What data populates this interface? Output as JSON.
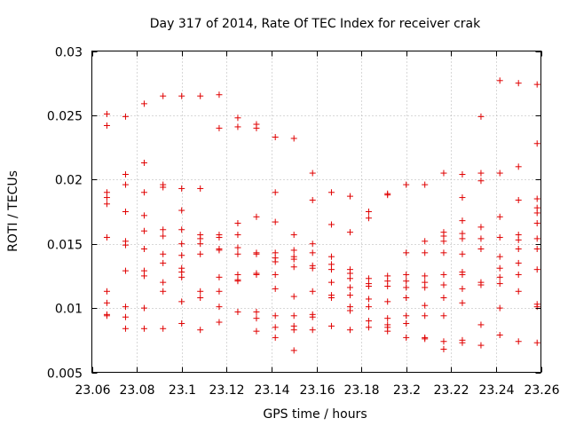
{
  "chart_data": {
    "type": "scatter",
    "title": "Day 317 of 2014, Rate Of TEC Index for receiver crak",
    "xlabel": "GPS time / hours",
    "ylabel": "ROTI / TECUs",
    "xlim": [
      23.06,
      23.26
    ],
    "ylim": [
      0.005,
      0.03
    ],
    "x_ticks": [
      "23.06",
      "23.08",
      "23.1",
      "23.12",
      "23.14",
      "23.16",
      "23.18",
      "23.2",
      "23.22",
      "23.24",
      "23.26"
    ],
    "y_ticks": [
      "0.005",
      "0.01",
      "0.015",
      "0.02",
      "0.025",
      "0.03"
    ],
    "x_tick_values": [
      23.06,
      23.08,
      23.1,
      23.12,
      23.14,
      23.16,
      23.18,
      23.2,
      23.22,
      23.24,
      23.26
    ],
    "y_tick_values": [
      0.005,
      0.01,
      0.015,
      0.02,
      0.025,
      0.03
    ],
    "grid": true,
    "marker": "+",
    "marker_color": "#e00000",
    "series": [
      {
        "name": "ROTI",
        "points": [
          [
            23.0667,
            0.0251
          ],
          [
            23.0667,
            0.0242
          ],
          [
            23.0667,
            0.019
          ],
          [
            23.0667,
            0.0186
          ],
          [
            23.0667,
            0.0181
          ],
          [
            23.0667,
            0.0155
          ],
          [
            23.0667,
            0.0113
          ],
          [
            23.0667,
            0.0104
          ],
          [
            23.0667,
            0.0095
          ],
          [
            23.0667,
            0.0094
          ],
          [
            23.075,
            0.0249
          ],
          [
            23.075,
            0.0204
          ],
          [
            23.075,
            0.0196
          ],
          [
            23.075,
            0.0175
          ],
          [
            23.075,
            0.0152
          ],
          [
            23.075,
            0.0149
          ],
          [
            23.075,
            0.0129
          ],
          [
            23.075,
            0.0101
          ],
          [
            23.075,
            0.0093
          ],
          [
            23.075,
            0.0084
          ],
          [
            23.0833,
            0.0259
          ],
          [
            23.0833,
            0.0213
          ],
          [
            23.0833,
            0.019
          ],
          [
            23.0833,
            0.0172
          ],
          [
            23.0833,
            0.016
          ],
          [
            23.0833,
            0.0146
          ],
          [
            23.0833,
            0.0129
          ],
          [
            23.0833,
            0.0125
          ],
          [
            23.0833,
            0.01
          ],
          [
            23.0833,
            0.0084
          ],
          [
            23.0917,
            0.0265
          ],
          [
            23.0917,
            0.0196
          ],
          [
            23.0917,
            0.0194
          ],
          [
            23.0917,
            0.0161
          ],
          [
            23.0917,
            0.0156
          ],
          [
            23.0917,
            0.0142
          ],
          [
            23.0917,
            0.0135
          ],
          [
            23.0917,
            0.012
          ],
          [
            23.0917,
            0.0113
          ],
          [
            23.0917,
            0.0084
          ],
          [
            23.1,
            0.0265
          ],
          [
            23.1,
            0.0193
          ],
          [
            23.1,
            0.0176
          ],
          [
            23.1,
            0.0161
          ],
          [
            23.1,
            0.015
          ],
          [
            23.1,
            0.0141
          ],
          [
            23.1,
            0.0131
          ],
          [
            23.1,
            0.0128
          ],
          [
            23.1,
            0.0124
          ],
          [
            23.1,
            0.0105
          ],
          [
            23.1,
            0.0088
          ],
          [
            23.1083,
            0.0265
          ],
          [
            23.1083,
            0.0193
          ],
          [
            23.1083,
            0.0157
          ],
          [
            23.1083,
            0.0154
          ],
          [
            23.1083,
            0.015
          ],
          [
            23.1083,
            0.0142
          ],
          [
            23.1083,
            0.0113
          ],
          [
            23.1083,
            0.0108
          ],
          [
            23.1083,
            0.0083
          ],
          [
            23.1167,
            0.0266
          ],
          [
            23.1167,
            0.024
          ],
          [
            23.1167,
            0.0157
          ],
          [
            23.1167,
            0.0155
          ],
          [
            23.1167,
            0.0146
          ],
          [
            23.1167,
            0.0145
          ],
          [
            23.1167,
            0.0124
          ],
          [
            23.1167,
            0.0113
          ],
          [
            23.1167,
            0.0101
          ],
          [
            23.1167,
            0.0089
          ],
          [
            23.125,
            0.0248
          ],
          [
            23.125,
            0.0241
          ],
          [
            23.125,
            0.0166
          ],
          [
            23.125,
            0.0157
          ],
          [
            23.125,
            0.0147
          ],
          [
            23.125,
            0.0142
          ],
          [
            23.125,
            0.0126
          ],
          [
            23.125,
            0.0122
          ],
          [
            23.125,
            0.0121
          ],
          [
            23.125,
            0.0097
          ],
          [
            23.1333,
            0.0243
          ],
          [
            23.1333,
            0.024
          ],
          [
            23.1333,
            0.0171
          ],
          [
            23.1333,
            0.0143
          ],
          [
            23.1333,
            0.0142
          ],
          [
            23.1333,
            0.0127
          ],
          [
            23.1333,
            0.0126
          ],
          [
            23.1333,
            0.0097
          ],
          [
            23.1333,
            0.0092
          ],
          [
            23.1333,
            0.0082
          ],
          [
            23.1417,
            0.0233
          ],
          [
            23.1417,
            0.019
          ],
          [
            23.1417,
            0.0167
          ],
          [
            23.1417,
            0.0143
          ],
          [
            23.1417,
            0.0139
          ],
          [
            23.1417,
            0.0136
          ],
          [
            23.1417,
            0.0126
          ],
          [
            23.1417,
            0.0115
          ],
          [
            23.1417,
            0.0094
          ],
          [
            23.1417,
            0.0085
          ],
          [
            23.1417,
            0.0077
          ],
          [
            23.15,
            0.0232
          ],
          [
            23.15,
            0.0157
          ],
          [
            23.15,
            0.0145
          ],
          [
            23.15,
            0.014
          ],
          [
            23.15,
            0.0138
          ],
          [
            23.15,
            0.0132
          ],
          [
            23.15,
            0.0109
          ],
          [
            23.15,
            0.0094
          ],
          [
            23.15,
            0.0086
          ],
          [
            23.15,
            0.0083
          ],
          [
            23.15,
            0.0067
          ],
          [
            23.1583,
            0.0205
          ],
          [
            23.1583,
            0.0184
          ],
          [
            23.1583,
            0.015
          ],
          [
            23.1583,
            0.0143
          ],
          [
            23.1583,
            0.0133
          ],
          [
            23.1583,
            0.0131
          ],
          [
            23.1583,
            0.0113
          ],
          [
            23.1583,
            0.0095
          ],
          [
            23.1583,
            0.0093
          ],
          [
            23.1583,
            0.0083
          ],
          [
            23.1667,
            0.019
          ],
          [
            23.1667,
            0.0165
          ],
          [
            23.1667,
            0.014
          ],
          [
            23.1667,
            0.0134
          ],
          [
            23.1667,
            0.013
          ],
          [
            23.1667,
            0.012
          ],
          [
            23.1667,
            0.011
          ],
          [
            23.1667,
            0.0108
          ],
          [
            23.1667,
            0.0086
          ],
          [
            23.175,
            0.0187
          ],
          [
            23.175,
            0.0159
          ],
          [
            23.175,
            0.013
          ],
          [
            23.175,
            0.0127
          ],
          [
            23.175,
            0.0123
          ],
          [
            23.175,
            0.0116
          ],
          [
            23.175,
            0.011
          ],
          [
            23.175,
            0.0101
          ],
          [
            23.175,
            0.0098
          ],
          [
            23.175,
            0.0083
          ],
          [
            23.1833,
            0.0175
          ],
          [
            23.1833,
            0.017
          ],
          [
            23.1833,
            0.0123
          ],
          [
            23.1833,
            0.0119
          ],
          [
            23.1833,
            0.0117
          ],
          [
            23.1833,
            0.0107
          ],
          [
            23.1833,
            0.0101
          ],
          [
            23.1833,
            0.009
          ],
          [
            23.1833,
            0.0085
          ],
          [
            23.1917,
            0.0189
          ],
          [
            23.1917,
            0.0188
          ],
          [
            23.1917,
            0.0125
          ],
          [
            23.1917,
            0.0121
          ],
          [
            23.1917,
            0.0117
          ],
          [
            23.1917,
            0.0105
          ],
          [
            23.1917,
            0.0092
          ],
          [
            23.1917,
            0.0087
          ],
          [
            23.1917,
            0.0085
          ],
          [
            23.1917,
            0.0082
          ],
          [
            23.2,
            0.0196
          ],
          [
            23.2,
            0.0143
          ],
          [
            23.2,
            0.0126
          ],
          [
            23.2,
            0.0121
          ],
          [
            23.2,
            0.0116
          ],
          [
            23.2,
            0.0108
          ],
          [
            23.2,
            0.0094
          ],
          [
            23.2,
            0.0088
          ],
          [
            23.2,
            0.0077
          ],
          [
            23.2083,
            0.0196
          ],
          [
            23.2083,
            0.0152
          ],
          [
            23.2083,
            0.0143
          ],
          [
            23.2083,
            0.0125
          ],
          [
            23.2083,
            0.012
          ],
          [
            23.2083,
            0.0116
          ],
          [
            23.2083,
            0.0102
          ],
          [
            23.2083,
            0.0094
          ],
          [
            23.2083,
            0.0077
          ],
          [
            23.2083,
            0.0076
          ],
          [
            23.2167,
            0.0205
          ],
          [
            23.2167,
            0.0159
          ],
          [
            23.2167,
            0.0156
          ],
          [
            23.2167,
            0.0152
          ],
          [
            23.2167,
            0.0143
          ],
          [
            23.2167,
            0.0126
          ],
          [
            23.2167,
            0.0118
          ],
          [
            23.2167,
            0.0108
          ],
          [
            23.2167,
            0.0094
          ],
          [
            23.2167,
            0.0074
          ],
          [
            23.2167,
            0.0068
          ],
          [
            23.225,
            0.0204
          ],
          [
            23.225,
            0.0186
          ],
          [
            23.225,
            0.0168
          ],
          [
            23.225,
            0.0158
          ],
          [
            23.225,
            0.0154
          ],
          [
            23.225,
            0.0142
          ],
          [
            23.225,
            0.0128
          ],
          [
            23.225,
            0.0126
          ],
          [
            23.225,
            0.0115
          ],
          [
            23.225,
            0.0104
          ],
          [
            23.225,
            0.0075
          ],
          [
            23.225,
            0.0073
          ],
          [
            23.2333,
            0.0249
          ],
          [
            23.2333,
            0.0205
          ],
          [
            23.2333,
            0.0199
          ],
          [
            23.2333,
            0.0163
          ],
          [
            23.2333,
            0.0154
          ],
          [
            23.2333,
            0.0146
          ],
          [
            23.2333,
            0.012
          ],
          [
            23.2333,
            0.0118
          ],
          [
            23.2333,
            0.0087
          ],
          [
            23.2333,
            0.0071
          ],
          [
            23.2417,
            0.0277
          ],
          [
            23.2417,
            0.0205
          ],
          [
            23.2417,
            0.0171
          ],
          [
            23.2417,
            0.0155
          ],
          [
            23.2417,
            0.014
          ],
          [
            23.2417,
            0.0131
          ],
          [
            23.2417,
            0.0124
          ],
          [
            23.2417,
            0.0119
          ],
          [
            23.2417,
            0.01
          ],
          [
            23.2417,
            0.0079
          ],
          [
            23.25,
            0.0275
          ],
          [
            23.25,
            0.021
          ],
          [
            23.25,
            0.0184
          ],
          [
            23.25,
            0.0157
          ],
          [
            23.25,
            0.0153
          ],
          [
            23.25,
            0.0146
          ],
          [
            23.25,
            0.0135
          ],
          [
            23.25,
            0.0126
          ],
          [
            23.25,
            0.0113
          ],
          [
            23.25,
            0.0074
          ],
          [
            23.2583,
            0.0274
          ],
          [
            23.2583,
            0.0228
          ],
          [
            23.2583,
            0.0185
          ],
          [
            23.2583,
            0.0178
          ],
          [
            23.2583,
            0.0174
          ],
          [
            23.2583,
            0.0166
          ],
          [
            23.2583,
            0.0154
          ],
          [
            23.2583,
            0.0146
          ],
          [
            23.2583,
            0.013
          ],
          [
            23.2583,
            0.0103
          ],
          [
            23.2583,
            0.0101
          ],
          [
            23.2583,
            0.0073
          ]
        ]
      }
    ]
  }
}
